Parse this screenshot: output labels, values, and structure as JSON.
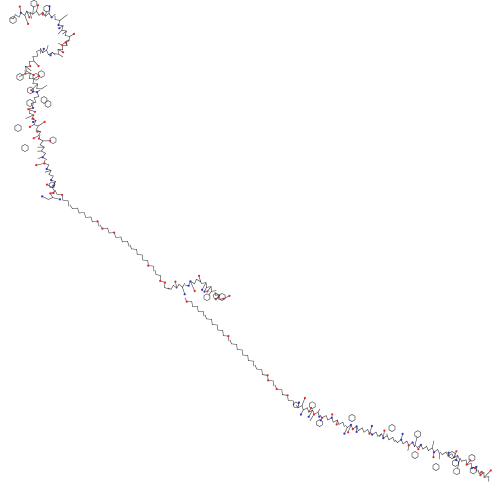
{
  "figure": {
    "type": "skeletal chemical structure",
    "description_visible_text": "",
    "colors": {
      "bond": "#303030",
      "oxygen": "#e8262b",
      "nitrogen": "#2f37c9",
      "background": "#ffffff"
    }
  }
}
